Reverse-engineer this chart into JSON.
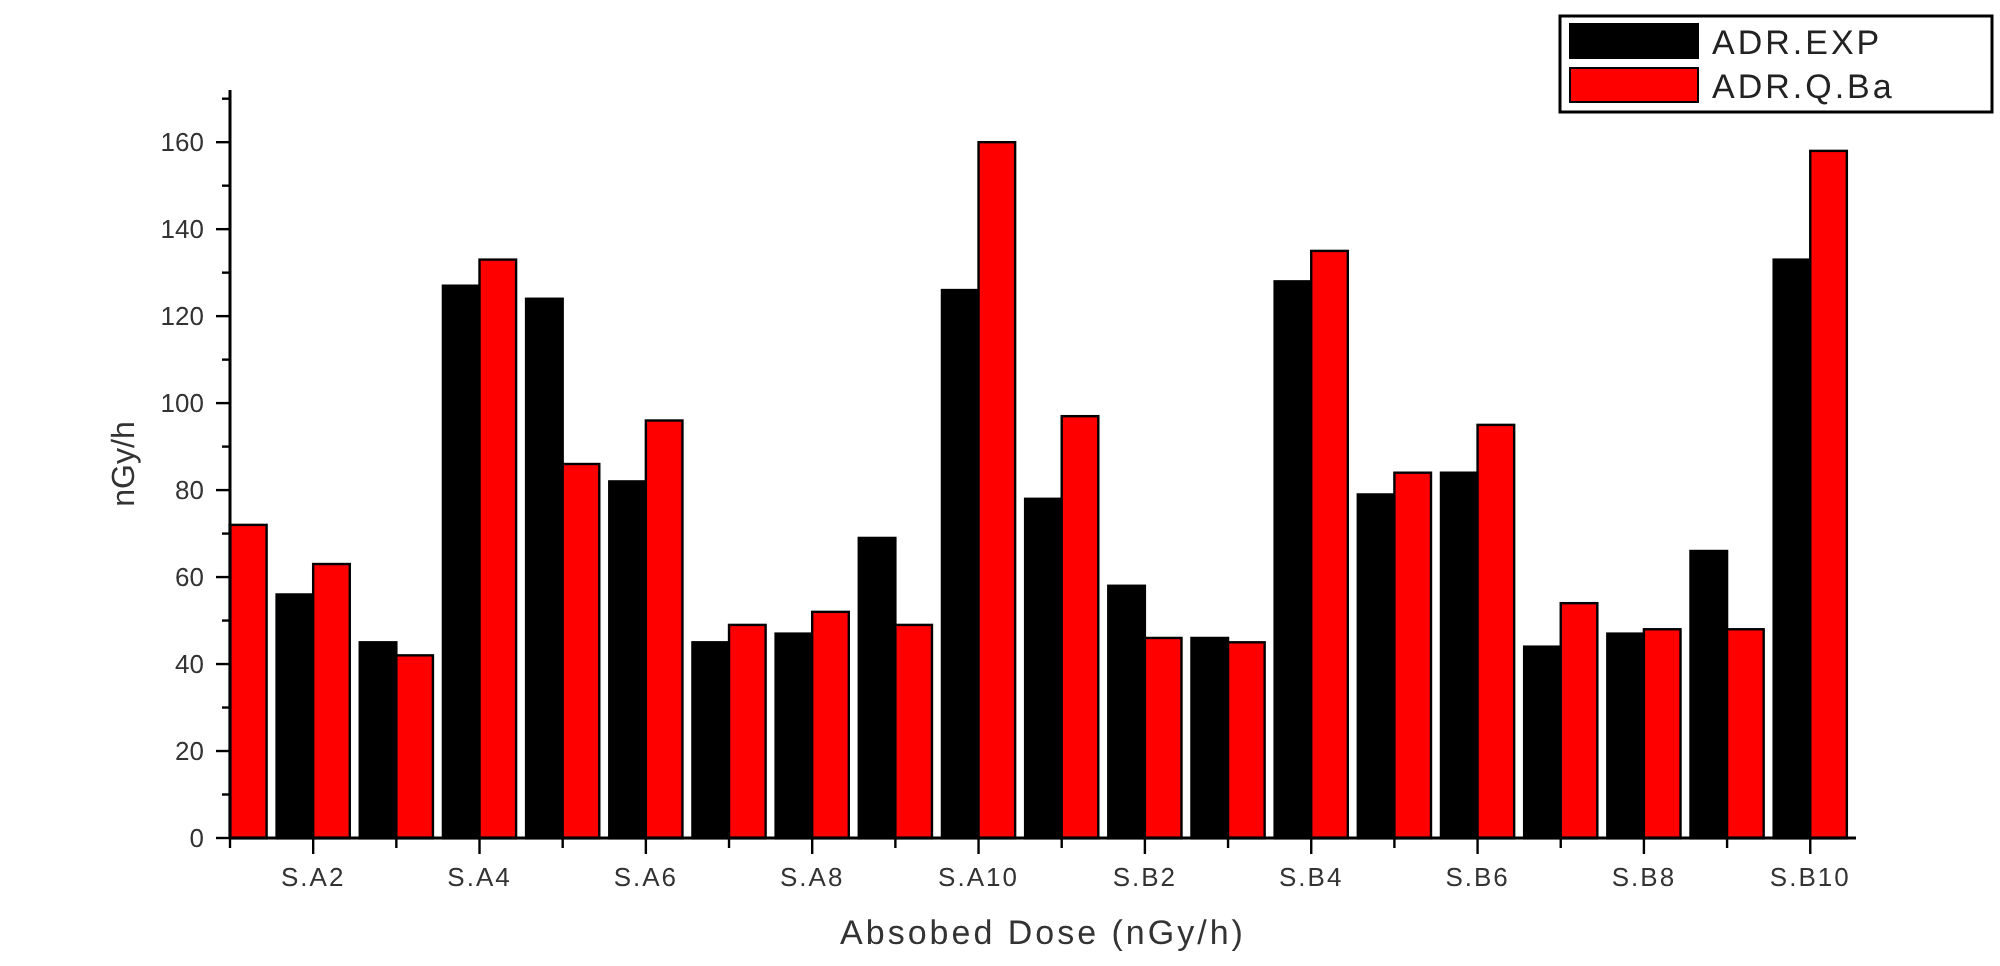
{
  "chart_data": {
    "type": "bar",
    "xlabel": "Absobed Dose (nGy/h)",
    "ylabel": "nGy/h",
    "categories": [
      null,
      "S.A2",
      null,
      "S.A4",
      null,
      "S.A6",
      null,
      "S.A8",
      null,
      "S.A10",
      null,
      "S.B2",
      null,
      "S.B4",
      null,
      "S.B6",
      null,
      "S.B8",
      null,
      "S.B10"
    ],
    "series": [
      {
        "name": "ADR.EXP",
        "color": "#000000",
        "values": [
          null,
          56,
          45,
          127,
          124,
          82,
          45,
          47,
          69,
          126,
          78,
          58,
          46,
          128,
          79,
          84,
          44,
          47,
          66,
          133
        ]
      },
      {
        "name": "ADR.Q.Ba",
        "color": "#ff0000",
        "values": [
          72,
          63,
          42,
          133,
          86,
          96,
          49,
          52,
          49,
          160,
          97,
          46,
          45,
          135,
          84,
          95,
          54,
          48,
          48,
          158
        ]
      }
    ],
    "ylim": [
      0,
      172
    ],
    "yticks": [
      0,
      {
        "value": 10,
        "label": null
      },
      20,
      {
        "value": 30,
        "label": null
      },
      40,
      {
        "value": 50,
        "label": null
      },
      60,
      {
        "value": 70,
        "label": null
      },
      80,
      {
        "value": 90,
        "label": null
      },
      100,
      {
        "value": 110,
        "label": null
      },
      120,
      {
        "value": 130,
        "label": null
      },
      140,
      {
        "value": 150,
        "label": null
      },
      160,
      {
        "value": 170,
        "label": null
      }
    ],
    "legend": "top right",
    "grid": false
  }
}
